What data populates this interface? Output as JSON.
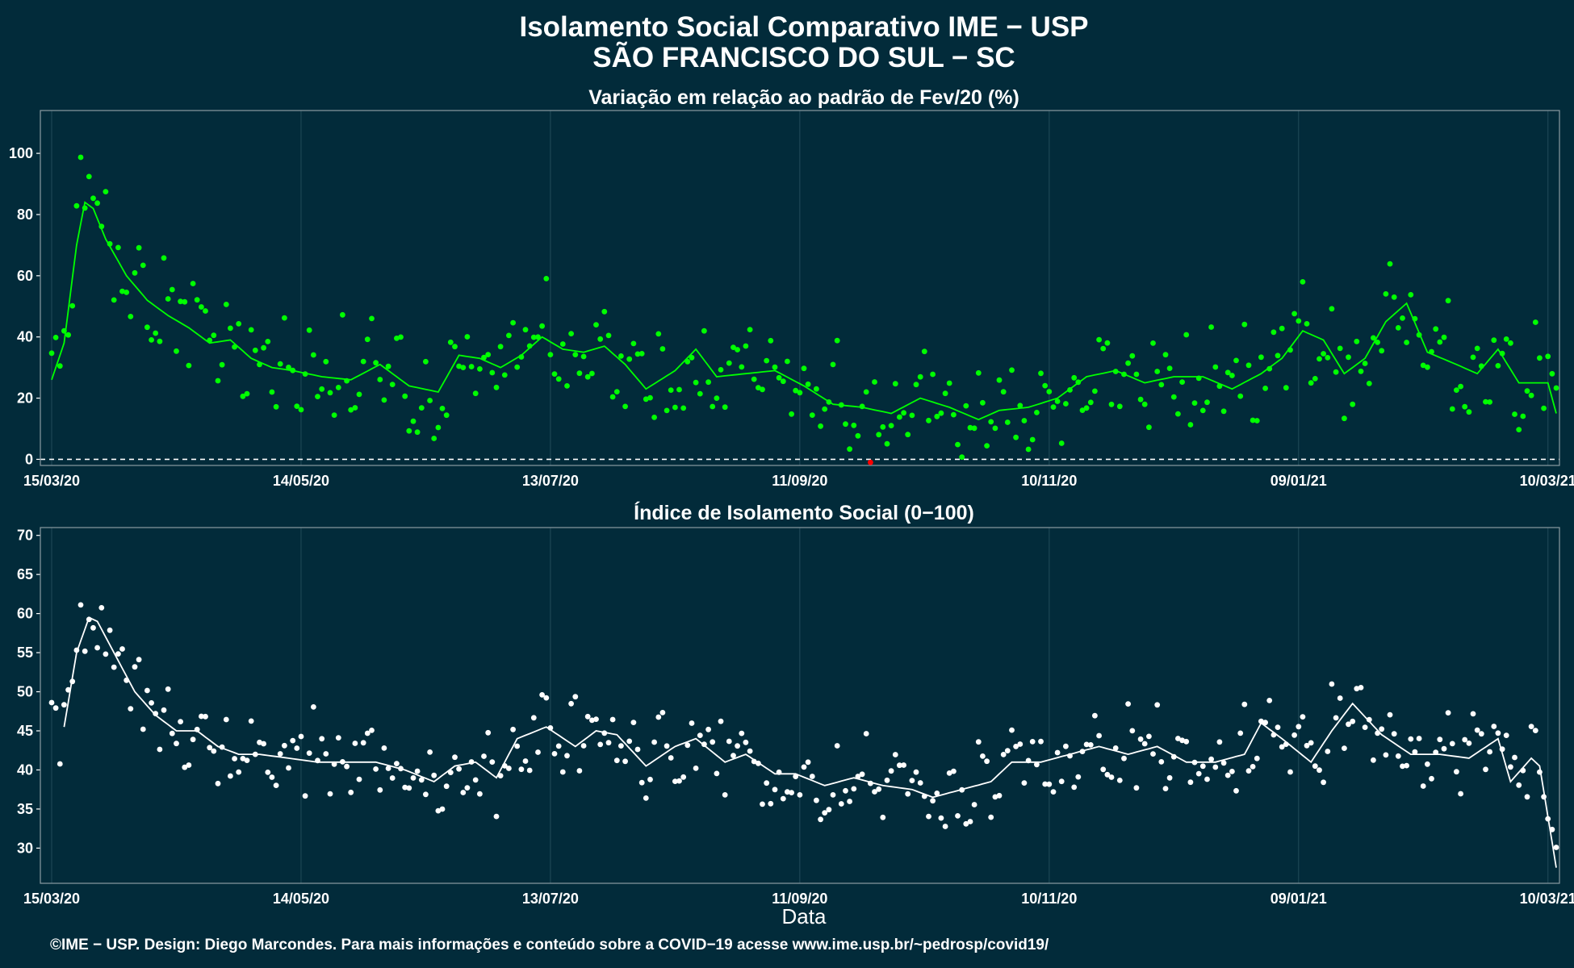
{
  "title_line1": "Isolamento Social Comparativo IME − USP",
  "title_line2": "SÃO FRANCISCO DO SUL − SC",
  "caption": "©IME − USP. Design: Diego Marcondes. Para mais informações e conteúdo sobre a COVID−19 acesse www.ime.usp.br/~pedrosp/covid19/",
  "xlabel": "Data",
  "colors": {
    "background": "#022b3a",
    "panel_border": "#8a9aa1",
    "gridline": "#1d4654",
    "variation": "#00ff00",
    "negative_point": "#ff0000",
    "index": "#ffffff"
  },
  "x_axis": {
    "start": "15/03/20",
    "end": "10/03/21",
    "tick_labels": [
      "15/03/20",
      "14/05/20",
      "13/07/20",
      "11/09/20",
      "10/11/20",
      "09/01/21",
      "10/03/21"
    ],
    "tick_day_offsets": [
      0,
      60,
      120,
      180,
      240,
      300,
      360
    ]
  },
  "chart_data": [
    {
      "type": "scatter",
      "title": "Variação em relação ao padrão de Fev/20 (%)",
      "y_ticks": [
        0,
        20,
        40,
        60,
        80,
        100
      ],
      "ylim": [
        -2,
        114
      ],
      "reference_line": 0,
      "grid": true,
      "series": [
        {
          "name": "",
          "style": "points"
        },
        {
          "name": "",
          "style": "line (7-day moving average)"
        }
      ],
      "anchors": {
        "x": [
          "15/03/20",
          "18/03/20",
          "21/03/20",
          "23/03/20",
          "25/03/20",
          "28/03/20",
          "02/04/20",
          "07/04/20",
          "12/04/20",
          "17/04/20",
          "22/04/20",
          "27/04/20",
          "02/05/20",
          "07/05/20",
          "12/05/20",
          "19/05/20",
          "26/05/20",
          "02/06/20",
          "09/06/20",
          "16/06/20",
          "21/06/20",
          "26/06/20",
          "01/07/20",
          "06/07/20",
          "11/07/20",
          "16/07/20",
          "21/07/20",
          "26/07/20",
          "31/07/20",
          "05/08/20",
          "12/08/20",
          "17/08/20",
          "22/08/20",
          "29/08/20",
          "05/09/20",
          "12/09/20",
          "19/09/20",
          "26/09/20",
          "03/10/20",
          "10/10/20",
          "17/10/20",
          "24/10/20",
          "29/10/20",
          "05/11/20",
          "12/11/20",
          "19/11/20",
          "26/11/20",
          "03/12/20",
          "10/12/20",
          "17/12/20",
          "24/12/20",
          "31/12/20",
          "05/01/21",
          "10/01/21",
          "15/01/21",
          "20/01/21",
          "25/01/21",
          "30/01/21",
          "04/02/21",
          "09/02/21",
          "16/02/21",
          "21/02/21",
          "26/02/21",
          "03/03/21",
          "10/03/21",
          "12/03/21"
        ],
        "y": [
          26,
          38,
          70,
          84,
          82,
          72,
          60,
          52,
          47,
          43,
          38,
          39,
          33,
          30,
          29,
          27,
          26,
          31,
          24,
          22,
          34,
          33,
          30,
          34,
          40,
          36,
          35,
          37,
          31,
          23,
          29,
          36,
          27,
          28,
          29,
          24,
          18,
          17,
          15,
          20,
          17,
          13,
          16,
          17,
          20,
          27,
          29,
          25,
          27,
          27,
          23,
          28,
          33,
          42,
          39,
          28,
          33,
          45,
          51,
          35,
          31,
          28,
          36,
          25,
          25,
          15
        ]
      }
    },
    {
      "type": "scatter",
      "title": "Índice de Isolamento Social (0−100)",
      "y_ticks": [
        30,
        35,
        40,
        45,
        50,
        55,
        60,
        65,
        70
      ],
      "ylim": [
        25.5,
        71
      ],
      "grid": true,
      "series": [
        {
          "name": "",
          "style": "points"
        },
        {
          "name": "",
          "style": "line (7-day moving average)"
        }
      ],
      "anchors": {
        "x": [
          "18/03/20",
          "21/03/20",
          "24/03/20",
          "26/03/20",
          "30/03/20",
          "04/04/20",
          "09/04/20",
          "14/04/20",
          "19/04/20",
          "24/04/20",
          "29/04/20",
          "04/05/20",
          "11/05/20",
          "18/05/20",
          "25/05/20",
          "01/06/20",
          "08/06/20",
          "15/06/20",
          "20/06/20",
          "25/06/20",
          "30/06/20",
          "05/07/20",
          "12/07/20",
          "19/07/20",
          "24/07/20",
          "29/07/20",
          "05/08/20",
          "12/08/20",
          "17/08/20",
          "24/08/20",
          "29/08/20",
          "05/09/20",
          "10/09/20",
          "17/09/20",
          "24/09/20",
          "01/10/20",
          "08/10/20",
          "13/10/20",
          "20/10/20",
          "27/10/20",
          "01/11/20",
          "08/11/20",
          "15/11/20",
          "22/11/20",
          "29/11/20",
          "06/12/20",
          "13/12/20",
          "20/12/20",
          "27/12/20",
          "31/12/20",
          "05/01/21",
          "12/01/21",
          "17/01/21",
          "22/01/21",
          "29/01/21",
          "05/02/21",
          "12/02/21",
          "19/02/21",
          "26/02/21",
          "01/03/21",
          "06/03/21",
          "08/03/21",
          "12/03/21"
        ],
        "y": [
          45.5,
          55,
          59.5,
          59,
          55,
          50,
          47,
          45,
          45,
          43,
          42,
          42,
          41.5,
          41,
          41,
          41,
          40,
          38.5,
          40.5,
          41,
          39,
          44,
          45.5,
          43,
          45,
          44.5,
          40.5,
          43,
          44,
          41,
          42,
          39.5,
          39.5,
          38,
          39,
          38,
          37.5,
          36.5,
          37.5,
          38.5,
          41,
          41,
          42,
          43,
          42,
          43,
          41,
          41,
          42,
          46,
          44,
          41,
          45,
          48.5,
          44.5,
          42,
          42,
          41.5,
          44,
          38.5,
          41.5,
          40.5,
          27.5
        ]
      }
    }
  ]
}
